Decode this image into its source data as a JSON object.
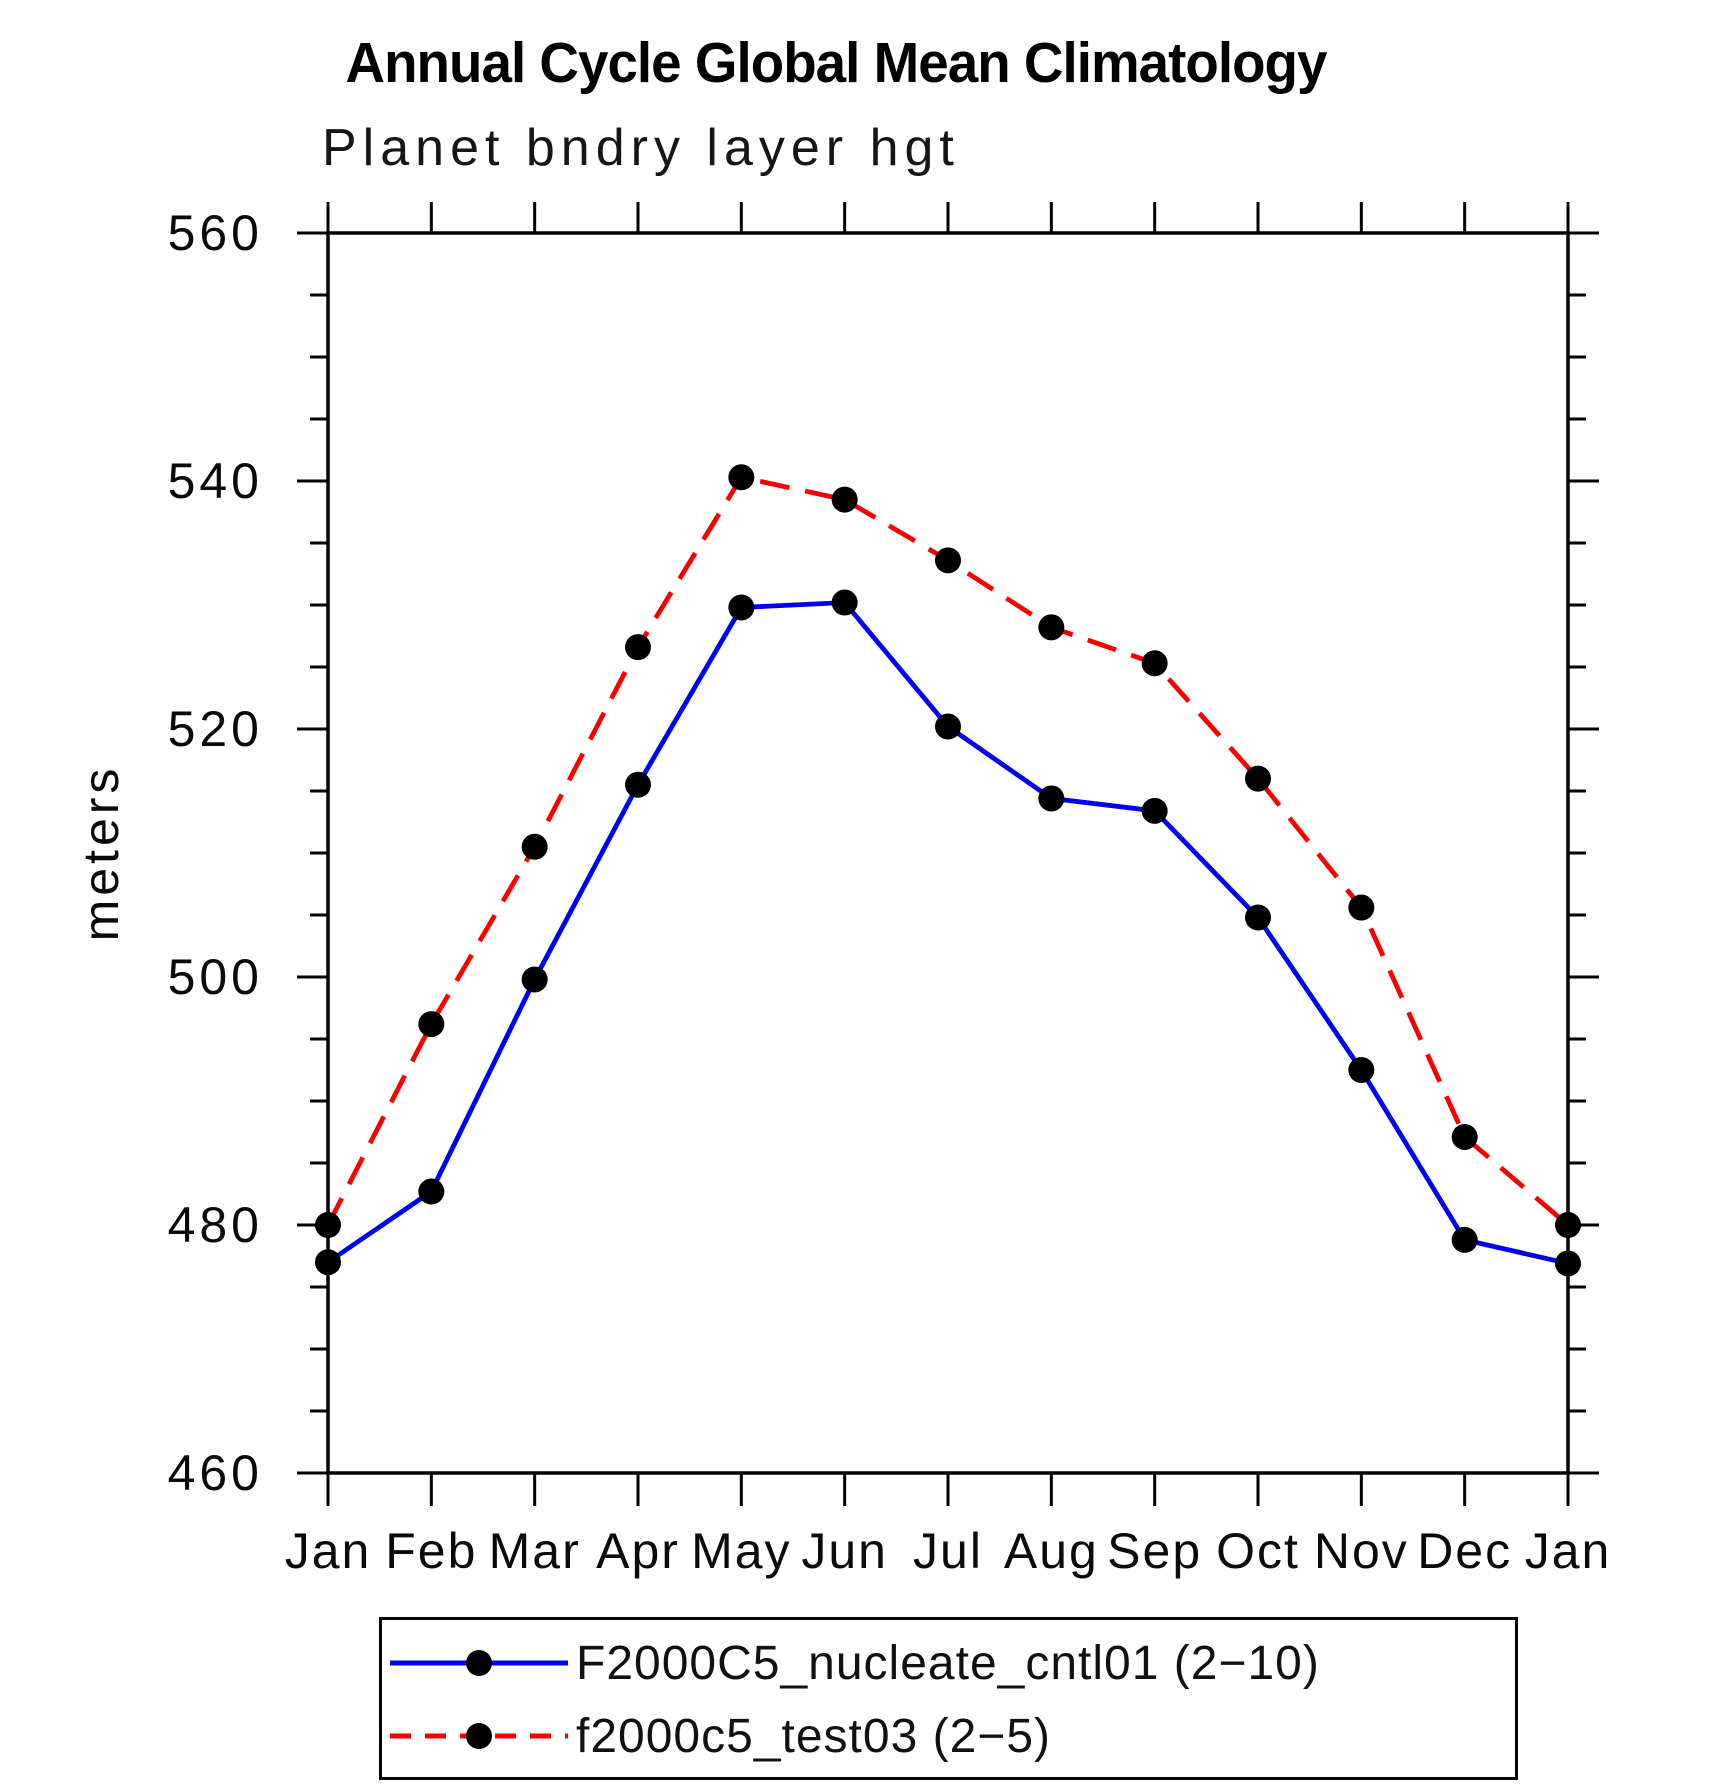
{
  "chart_data": {
    "type": "line",
    "title": "Annual Cycle Global Mean Climatology",
    "subtitle": "Planet bndry layer hgt",
    "ylabel": "meters",
    "xlabel": "",
    "categories": [
      "Jan",
      "Feb",
      "Mar",
      "Apr",
      "May",
      "Jun",
      "Jul",
      "Aug",
      "Sep",
      "Oct",
      "Nov",
      "Dec",
      "Jan"
    ],
    "ylim": [
      460,
      560
    ],
    "y_major_step": 20,
    "y_minor_step": 5,
    "y_tick_labels": [
      "460",
      "480",
      "500",
      "520",
      "540",
      "560"
    ],
    "grid": false,
    "legend_position": "bottom",
    "marker": {
      "shape": "circle",
      "color": "#000000"
    },
    "series": [
      {
        "name": "F2000C5_nucleate_cntl01 (2−10)",
        "color": "#0000f0",
        "line_style": "solid",
        "values": [
          477.0,
          482.7,
          499.8,
          515.5,
          529.8,
          530.2,
          520.2,
          514.4,
          513.4,
          504.8,
          492.5,
          478.8,
          476.9
        ]
      },
      {
        "name": "f2000c5_test03 (2−5)",
        "color": "#f80000",
        "line_style": "dashed",
        "values": [
          480.0,
          496.2,
          510.5,
          526.6,
          540.3,
          538.5,
          533.6,
          528.2,
          525.3,
          516.0,
          505.6,
          487.1,
          480.0
        ]
      }
    ]
  }
}
